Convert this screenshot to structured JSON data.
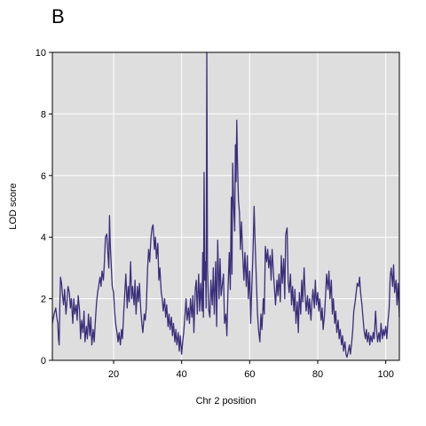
{
  "panel_label": "B",
  "chart_data": {
    "type": "line",
    "title": "",
    "xlabel": "Chr 2 position",
    "ylabel": "LOD score",
    "xlim": [
      2,
      104
    ],
    "ylim": [
      0,
      10
    ],
    "xticks": [
      20,
      40,
      60,
      80,
      100
    ],
    "yticks": [
      0,
      2,
      4,
      6,
      8,
      10
    ],
    "grid": true,
    "colors": {
      "line": "#3a2f7a",
      "panel_bg": "#dedede",
      "grid": "#ffffff",
      "frame": "#000000"
    },
    "series": [
      {
        "values": [
          [
            2.0,
            1.2
          ],
          [
            2.5,
            1.5
          ],
          [
            3.0,
            1.7
          ],
          [
            3.3,
            1.4
          ],
          [
            3.6,
            1.2
          ],
          [
            3.8,
            0.7
          ],
          [
            4.0,
            0.5
          ],
          [
            4.2,
            1.8
          ],
          [
            4.4,
            2.7
          ],
          [
            4.7,
            2.5
          ],
          [
            5.0,
            2.1
          ],
          [
            5.3,
            1.8
          ],
          [
            5.6,
            2.3
          ],
          [
            6.0,
            1.5
          ],
          [
            6.3,
            1.9
          ],
          [
            6.6,
            2.4
          ],
          [
            7.0,
            2.2
          ],
          [
            7.3,
            1.7
          ],
          [
            7.6,
            2.0
          ],
          [
            8.0,
            1.2
          ],
          [
            8.3,
            2.0
          ],
          [
            8.6,
            1.5
          ],
          [
            9.0,
            1.8
          ],
          [
            9.3,
            1.3
          ],
          [
            9.6,
            2.1
          ],
          [
            10.0,
            1.6
          ],
          [
            10.3,
            0.7
          ],
          [
            10.6,
            1.3
          ],
          [
            11.0,
            0.9
          ],
          [
            11.3,
            1.6
          ],
          [
            11.6,
            0.6
          ],
          [
            12.0,
            1.1
          ],
          [
            12.3,
            0.7
          ],
          [
            12.6,
            1.5
          ],
          [
            13.0,
            0.8
          ],
          [
            13.3,
            1.4
          ],
          [
            13.6,
            0.5
          ],
          [
            14.0,
            1.0
          ],
          [
            14.3,
            0.6
          ],
          [
            14.6,
            1.2
          ],
          [
            15.0,
            1.9
          ],
          [
            15.3,
            2.2
          ],
          [
            15.6,
            2.4
          ],
          [
            16.0,
            2.7
          ],
          [
            16.3,
            2.4
          ],
          [
            16.6,
            2.9
          ],
          [
            17.0,
            2.6
          ],
          [
            17.3,
            3.2
          ],
          [
            17.6,
            4.0
          ],
          [
            18.0,
            4.1
          ],
          [
            18.3,
            3.5
          ],
          [
            18.6,
            3.0
          ],
          [
            18.8,
            4.7
          ],
          [
            19.0,
            3.8
          ],
          [
            19.3,
            3.1
          ],
          [
            19.6,
            2.4
          ],
          [
            20.0,
            2.2
          ],
          [
            20.3,
            1.6
          ],
          [
            20.6,
            1.2
          ],
          [
            21.0,
            0.9
          ],
          [
            21.3,
            0.6
          ],
          [
            21.6,
            0.9
          ],
          [
            22.0,
            0.5
          ],
          [
            22.3,
            1.0
          ],
          [
            22.6,
            0.7
          ],
          [
            23.0,
            1.6
          ],
          [
            23.3,
            2.2
          ],
          [
            23.6,
            2.8
          ],
          [
            24.0,
            1.7
          ],
          [
            24.3,
            2.4
          ],
          [
            24.6,
            1.9
          ],
          [
            25.0,
            3.2
          ],
          [
            25.3,
            2.0
          ],
          [
            25.6,
            2.4
          ],
          [
            26.0,
            1.8
          ],
          [
            26.3,
            2.6
          ],
          [
            26.6,
            1.5
          ],
          [
            27.0,
            2.4
          ],
          [
            27.3,
            1.9
          ],
          [
            27.6,
            2.5
          ],
          [
            28.0,
            1.6
          ],
          [
            28.3,
            1.2
          ],
          [
            28.6,
            0.9
          ],
          [
            29.0,
            1.5
          ],
          [
            29.3,
            1.3
          ],
          [
            29.6,
            1.7
          ],
          [
            30.0,
            3.0
          ],
          [
            30.3,
            3.6
          ],
          [
            30.6,
            3.2
          ],
          [
            31.0,
            4.0
          ],
          [
            31.3,
            4.3
          ],
          [
            31.6,
            4.4
          ],
          [
            32.0,
            3.6
          ],
          [
            32.3,
            4.0
          ],
          [
            32.6,
            3.3
          ],
          [
            33.0,
            3.8
          ],
          [
            33.3,
            2.6
          ],
          [
            33.6,
            3.0
          ],
          [
            34.0,
            2.2
          ],
          [
            34.3,
            2.0
          ],
          [
            34.6,
            1.6
          ],
          [
            35.0,
            2.0
          ],
          [
            35.3,
            1.4
          ],
          [
            35.6,
            1.8
          ],
          [
            36.0,
            1.1
          ],
          [
            36.3,
            1.5
          ],
          [
            36.6,
            1.0
          ],
          [
            37.0,
            1.4
          ],
          [
            37.3,
            0.8
          ],
          [
            37.6,
            1.2
          ],
          [
            38.0,
            0.6
          ],
          [
            38.3,
            1.0
          ],
          [
            38.6,
            0.5
          ],
          [
            39.0,
            0.9
          ],
          [
            39.3,
            0.3
          ],
          [
            39.6,
            0.8
          ],
          [
            40.0,
            0.2
          ],
          [
            40.3,
            0.6
          ],
          [
            40.6,
            0.9
          ],
          [
            41.0,
            1.5
          ],
          [
            41.3,
            2.0
          ],
          [
            41.6,
            1.3
          ],
          [
            42.0,
            1.7
          ],
          [
            42.3,
            1.2
          ],
          [
            42.6,
            2.0
          ],
          [
            43.0,
            1.4
          ],
          [
            43.3,
            2.1
          ],
          [
            43.6,
            0.9
          ],
          [
            44.0,
            2.3
          ],
          [
            44.3,
            2.6
          ],
          [
            44.6,
            1.5
          ],
          [
            45.0,
            2.8
          ],
          [
            45.3,
            1.6
          ],
          [
            45.6,
            2.5
          ],
          [
            46.0,
            1.6
          ],
          [
            46.2,
            3.5
          ],
          [
            46.4,
            1.4
          ],
          [
            46.6,
            6.1
          ],
          [
            46.8,
            2.6
          ],
          [
            47.0,
            3.2
          ],
          [
            47.2,
            1.7
          ],
          [
            47.4,
            10.0
          ],
          [
            47.6,
            3.0
          ],
          [
            47.8,
            2.2
          ],
          [
            48.0,
            1.6
          ],
          [
            48.3,
            1.4
          ],
          [
            48.6,
            2.6
          ],
          [
            49.0,
            1.8
          ],
          [
            49.3,
            3.0
          ],
          [
            49.6,
            1.5
          ],
          [
            50.0,
            3.2
          ],
          [
            50.3,
            1.1
          ],
          [
            50.6,
            3.9
          ],
          [
            51.0,
            2.0
          ],
          [
            51.3,
            3.3
          ],
          [
            51.6,
            2.1
          ],
          [
            52.0,
            2.5
          ],
          [
            52.3,
            2.8
          ],
          [
            52.6,
            1.2
          ],
          [
            53.0,
            1.5
          ],
          [
            53.3,
            0.8
          ],
          [
            53.6,
            2.2
          ],
          [
            54.0,
            3.5
          ],
          [
            54.3,
            2.3
          ],
          [
            54.6,
            5.3
          ],
          [
            54.8,
            2.8
          ],
          [
            55.0,
            6.4
          ],
          [
            55.3,
            5.0
          ],
          [
            55.6,
            4.2
          ],
          [
            55.8,
            7.0
          ],
          [
            56.0,
            5.8
          ],
          [
            56.2,
            7.8
          ],
          [
            56.4,
            6.5
          ],
          [
            56.7,
            5.2
          ],
          [
            57.0,
            4.8
          ],
          [
            57.3,
            3.6
          ],
          [
            57.6,
            4.5
          ],
          [
            58.0,
            3.3
          ],
          [
            58.3,
            2.6
          ],
          [
            58.6,
            3.5
          ],
          [
            59.0,
            2.4
          ],
          [
            59.3,
            3.4
          ],
          [
            59.6,
            2.0
          ],
          [
            60.0,
            2.9
          ],
          [
            60.3,
            1.2
          ],
          [
            60.6,
            2.3
          ],
          [
            61.0,
            3.6
          ],
          [
            61.3,
            5.0
          ],
          [
            61.6,
            3.8
          ],
          [
            62.0,
            2.5
          ],
          [
            62.3,
            1.5
          ],
          [
            62.6,
            1.0
          ],
          [
            63.0,
            0.6
          ],
          [
            63.3,
            1.5
          ],
          [
            63.6,
            1.0
          ],
          [
            64.0,
            2.0
          ],
          [
            64.3,
            1.5
          ],
          [
            64.6,
            3.7
          ],
          [
            65.0,
            3.2
          ],
          [
            65.3,
            3.6
          ],
          [
            65.6,
            3.0
          ],
          [
            66.0,
            3.4
          ],
          [
            66.3,
            2.6
          ],
          [
            66.6,
            3.6
          ],
          [
            67.0,
            2.8
          ],
          [
            67.3,
            2.3
          ],
          [
            67.6,
            1.8
          ],
          [
            68.0,
            2.6
          ],
          [
            68.3,
            2.1
          ],
          [
            68.6,
            2.8
          ],
          [
            69.0,
            1.9
          ],
          [
            69.3,
            3.4
          ],
          [
            69.6,
            2.5
          ],
          [
            70.0,
            3.3
          ],
          [
            70.3,
            2.0
          ],
          [
            70.6,
            4.1
          ],
          [
            71.0,
            4.3
          ],
          [
            71.3,
            2.6
          ],
          [
            71.6,
            2.2
          ],
          [
            72.0,
            2.8
          ],
          [
            72.3,
            1.8
          ],
          [
            72.6,
            2.4
          ],
          [
            73.0,
            1.6
          ],
          [
            73.3,
            2.3
          ],
          [
            73.6,
            1.2
          ],
          [
            74.0,
            1.9
          ],
          [
            74.3,
            0.9
          ],
          [
            74.6,
            2.2
          ],
          [
            75.0,
            1.5
          ],
          [
            75.3,
            2.6
          ],
          [
            75.6,
            1.9
          ],
          [
            76.0,
            3.0
          ],
          [
            76.3,
            2.1
          ],
          [
            76.6,
            1.6
          ],
          [
            77.0,
            2.1
          ],
          [
            77.3,
            1.5
          ],
          [
            77.6,
            2.0
          ],
          [
            78.0,
            1.3
          ],
          [
            78.3,
            1.9
          ],
          [
            78.6,
            2.3
          ],
          [
            79.0,
            1.7
          ],
          [
            79.3,
            2.6
          ],
          [
            79.6,
            1.8
          ],
          [
            80.0,
            2.2
          ],
          [
            80.3,
            1.6
          ],
          [
            80.6,
            2.0
          ],
          [
            81.0,
            1.3
          ],
          [
            81.3,
            1.7
          ],
          [
            81.6,
            1.0
          ],
          [
            82.0,
            1.5
          ],
          [
            82.3,
            2.1
          ],
          [
            82.6,
            2.8
          ],
          [
            83.0,
            2.3
          ],
          [
            83.3,
            2.9
          ],
          [
            83.6,
            2.0
          ],
          [
            84.0,
            2.6
          ],
          [
            84.3,
            1.5
          ],
          [
            84.6,
            2.0
          ],
          [
            85.0,
            1.2
          ],
          [
            85.3,
            1.6
          ],
          [
            85.6,
            0.9
          ],
          [
            86.0,
            1.3
          ],
          [
            86.3,
            0.7
          ],
          [
            86.6,
            1.0
          ],
          [
            87.0,
            0.5
          ],
          [
            87.3,
            0.8
          ],
          [
            87.6,
            0.3
          ],
          [
            88.0,
            0.6
          ],
          [
            88.3,
            0.2
          ],
          [
            88.6,
            0.1
          ],
          [
            89.0,
            0.3
          ],
          [
            89.3,
            0.5
          ],
          [
            89.6,
            0.2
          ],
          [
            90.0,
            0.6
          ],
          [
            90.3,
            1.0
          ],
          [
            90.6,
            1.6
          ],
          [
            91.0,
            1.9
          ],
          [
            91.3,
            2.2
          ],
          [
            91.6,
            2.5
          ],
          [
            92.0,
            2.4
          ],
          [
            92.3,
            2.7
          ],
          [
            92.6,
            2.2
          ],
          [
            93.0,
            1.8
          ],
          [
            93.3,
            1.4
          ],
          [
            93.6,
            1.0
          ],
          [
            94.0,
            0.7
          ],
          [
            94.3,
            1.0
          ],
          [
            94.6,
            0.6
          ],
          [
            95.0,
            0.9
          ],
          [
            95.3,
            0.5
          ],
          [
            95.6,
            0.8
          ],
          [
            96.0,
            0.6
          ],
          [
            96.3,
            0.9
          ],
          [
            96.6,
            0.7
          ],
          [
            97.0,
            1.6
          ],
          [
            97.3,
            1.0
          ],
          [
            97.6,
            0.6
          ],
          [
            98.0,
            0.9
          ],
          [
            98.3,
            0.6
          ],
          [
            98.6,
            1.2
          ],
          [
            99.0,
            0.7
          ],
          [
            99.3,
            1.0
          ],
          [
            99.6,
            0.8
          ],
          [
            100.0,
            1.1
          ],
          [
            100.3,
            0.7
          ],
          [
            100.6,
            1.2
          ],
          [
            101.0,
            1.7
          ],
          [
            101.3,
            2.7
          ],
          [
            101.6,
            3.0
          ],
          [
            102.0,
            2.4
          ],
          [
            102.3,
            3.1
          ],
          [
            102.6,
            2.2
          ],
          [
            103.0,
            2.6
          ],
          [
            103.3,
            1.8
          ],
          [
            103.6,
            2.5
          ],
          [
            104.0,
            1.4
          ]
        ]
      }
    ]
  }
}
